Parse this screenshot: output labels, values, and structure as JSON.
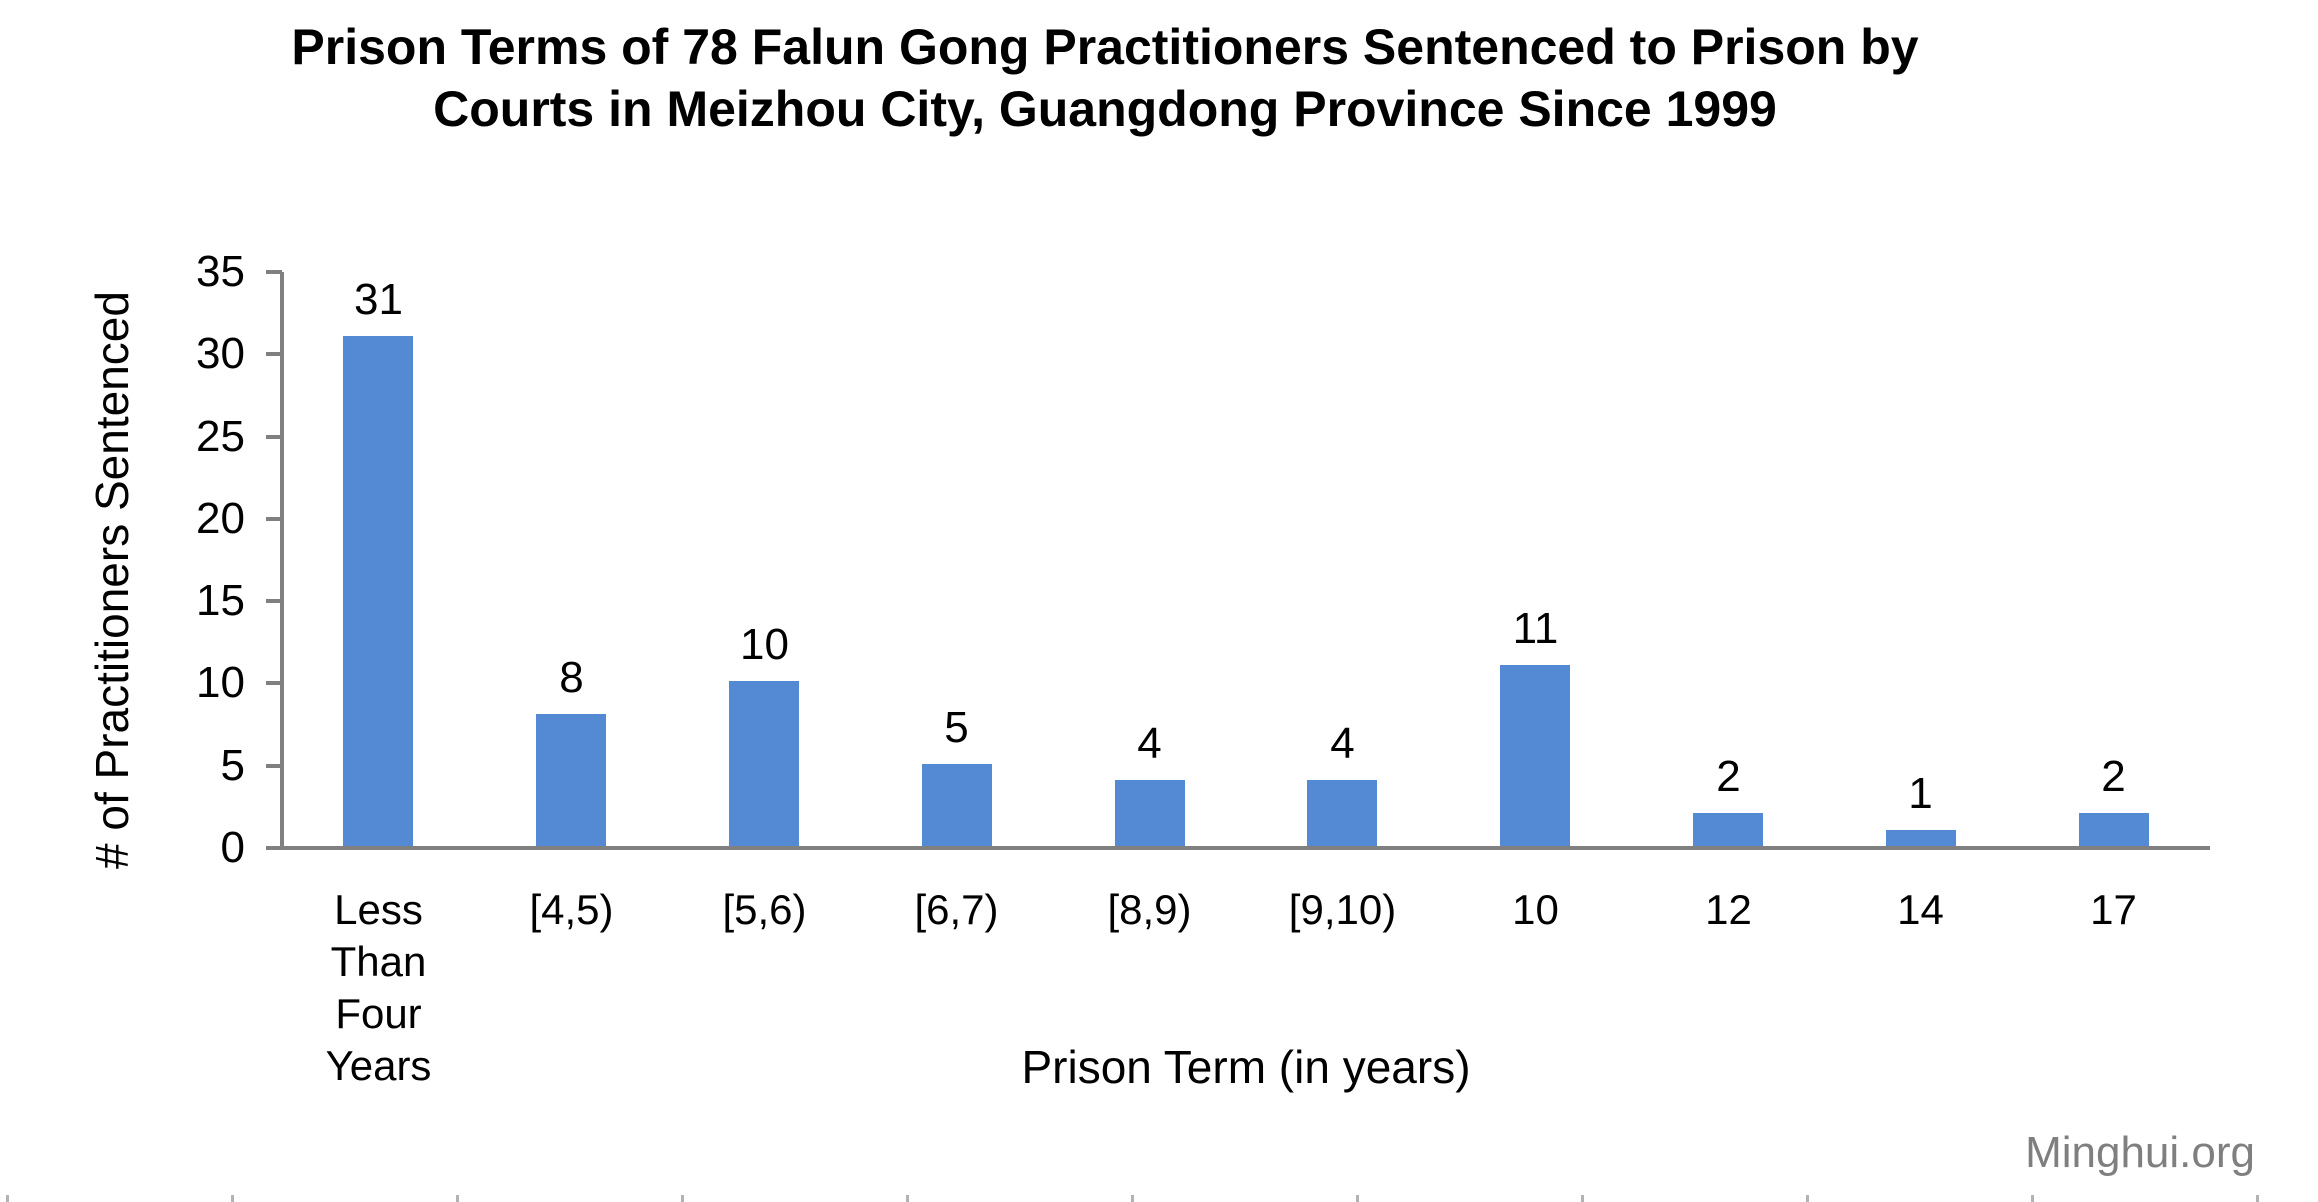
{
  "title_lines": [
    "Prison Terms of 78 Falun Gong Practitioners Sentenced to Prison by",
    "Courts in Meizhou City, Guangdong Province Since 1999"
  ],
  "watermark": "Minghui.org",
  "colors": {
    "bar": "#548AD4",
    "axis": "#808080",
    "text": "#000000",
    "watermark": "#7f7f7f"
  },
  "chart_data": {
    "type": "bar",
    "title": "Prison Terms of 78 Falun Gong Practitioners Sentenced to Prison by Courts in Meizhou City, Guangdong Province Since 1999",
    "categories": [
      "Less\nThan\nFour\nYears",
      "[4,5)",
      "[5,6)",
      "[6,7)",
      "[8,9)",
      "[9,10)",
      "10",
      "12",
      "14",
      "17"
    ],
    "values": [
      31,
      8,
      10,
      5,
      4,
      4,
      11,
      2,
      1,
      2
    ],
    "data_labels": [
      31,
      8,
      10,
      5,
      4,
      4,
      11,
      2,
      1,
      2
    ],
    "xlabel": "Prison Term (in years)",
    "ylabel": "# of Practitioners Sentenced",
    "ylim": [
      0,
      35
    ],
    "yticks": [
      0,
      5,
      10,
      15,
      20,
      25,
      30,
      35
    ],
    "grid": false,
    "legend": null,
    "bar_color": "#548AD4",
    "source_label": "Minghui.org"
  }
}
